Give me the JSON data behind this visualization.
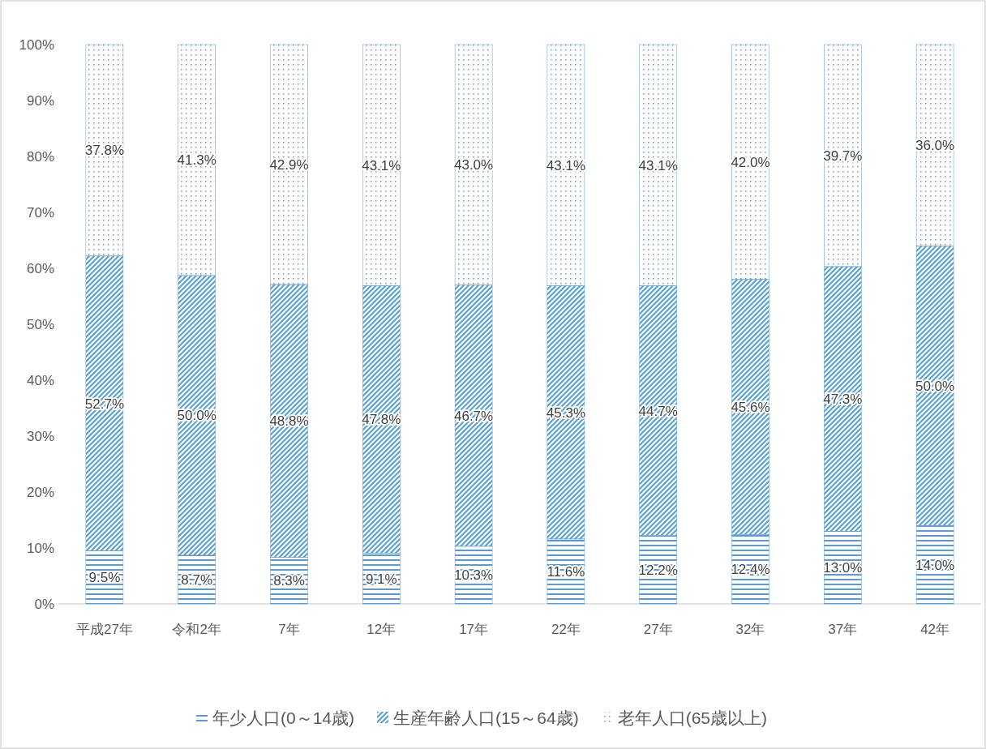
{
  "chart_data": {
    "type": "bar",
    "stacked": true,
    "categories": [
      "平成27年",
      "令和2年",
      "7年",
      "12年",
      "17年",
      "22年",
      "27年",
      "32年",
      "37年",
      "42年"
    ],
    "series": [
      {
        "name": "年少人口(0～14歳)",
        "color": "#5b9bd5",
        "values": [
          9.5,
          8.7,
          8.3,
          9.1,
          10.3,
          11.6,
          12.2,
          12.4,
          13.0,
          14.0
        ],
        "value_labels": [
          "9.5%",
          "8.7%",
          "8.3%",
          "9.1%",
          "10.3%",
          "11.6%",
          "12.2%",
          "12.4%",
          "13.0%",
          "14.0%"
        ]
      },
      {
        "name": "生産年齢人口(15～64歳)",
        "color": "#5b9bd5",
        "values": [
          52.7,
          50.0,
          48.8,
          47.8,
          46.7,
          45.3,
          44.7,
          45.6,
          47.3,
          50.0
        ],
        "value_labels": [
          "52.7%",
          "50.0%",
          "48.8%",
          "47.8%",
          "46.7%",
          "45.3%",
          "44.7%",
          "45.6%",
          "47.3%",
          "50.0%"
        ]
      },
      {
        "name": "老年人口(65歳以上)",
        "color": "#5b9bd5",
        "values": [
          37.8,
          41.3,
          42.9,
          43.1,
          43.0,
          43.1,
          43.1,
          42.0,
          39.7,
          36.0
        ],
        "value_labels": [
          "37.8%",
          "41.3%",
          "42.9%",
          "43.1%",
          "43.0%",
          "43.1%",
          "43.1%",
          "42.0%",
          "39.7%",
          "36.0%"
        ]
      }
    ],
    "ylim": [
      0,
      100
    ],
    "yticks": [
      {
        "value": 0,
        "label": "0%"
      },
      {
        "value": 10,
        "label": "10%"
      },
      {
        "value": 20,
        "label": "20%"
      },
      {
        "value": 30,
        "label": "30%"
      },
      {
        "value": 40,
        "label": "40%"
      },
      {
        "value": 50,
        "label": "50%"
      },
      {
        "value": 60,
        "label": "60%"
      },
      {
        "value": 70,
        "label": "70%"
      },
      {
        "value": 80,
        "label": "80%"
      },
      {
        "value": 90,
        "label": "90%"
      },
      {
        "value": 100,
        "label": "100%"
      }
    ],
    "legend": "bottom"
  }
}
